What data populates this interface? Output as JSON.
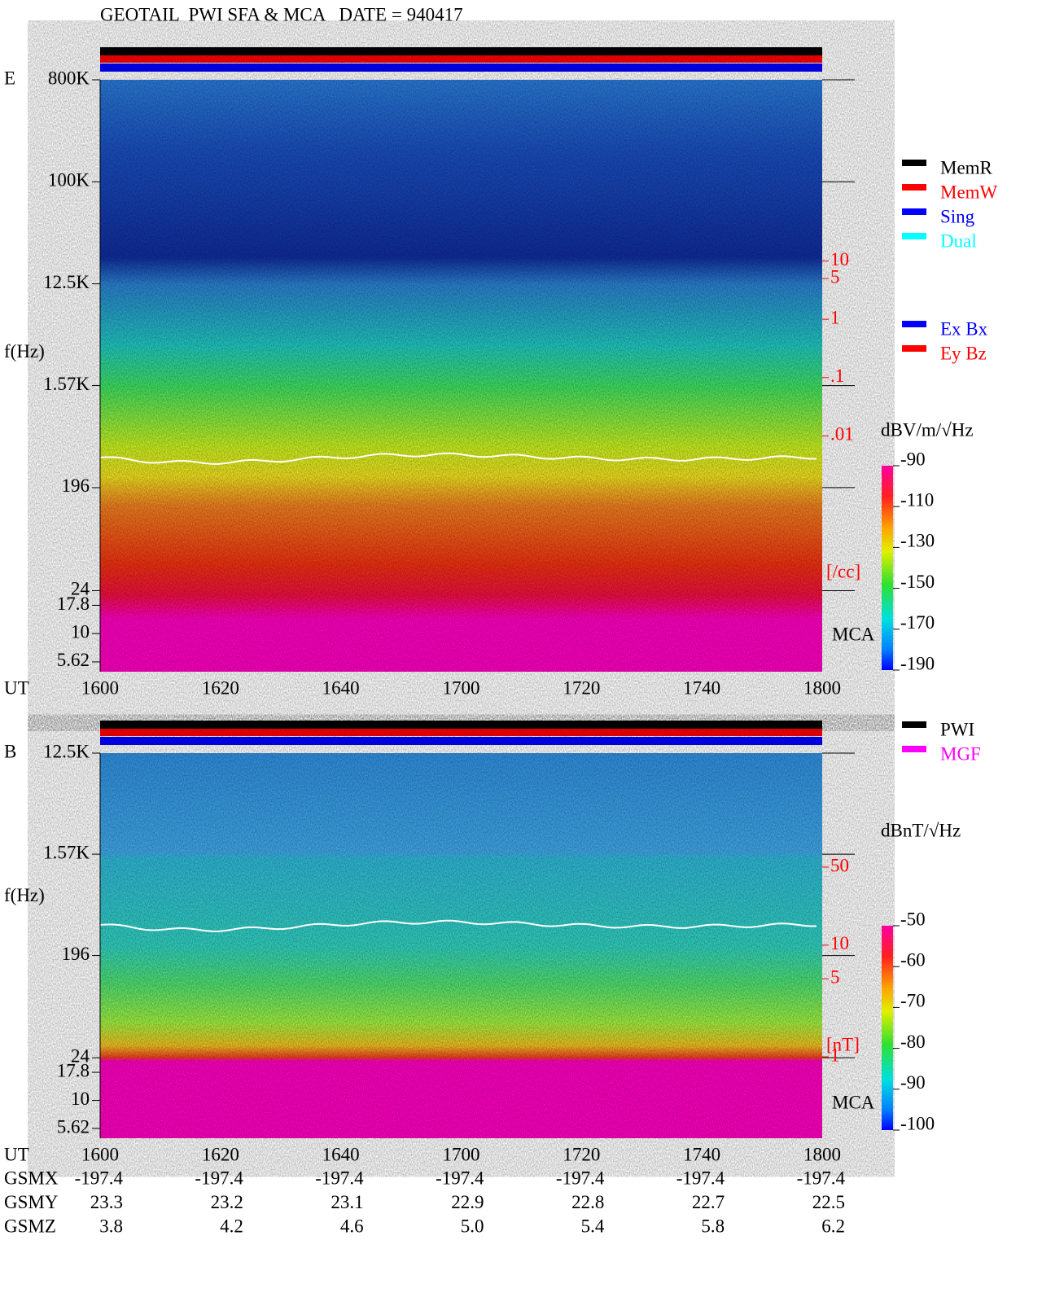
{
  "title": "GEOTAIL  PWI SFA & MCA   DATE = 940417",
  "chart_data": [
    {
      "type": "spectrogram",
      "panel_label": "E",
      "y_label": "f(Hz)",
      "x_label": "UT",
      "annotation": "MCA",
      "log_y": true,
      "ylim": [
        4.6,
        800000
      ],
      "yticks": [
        {
          "value": 800000,
          "label": "800K"
        },
        {
          "value": 100000,
          "label": "100K"
        },
        {
          "value": 12500,
          "label": "12.5K"
        },
        {
          "value": 1570,
          "label": "1.57K"
        },
        196,
        24,
        17.8,
        10,
        5.62
      ],
      "xticks": [
        "1600",
        "1620",
        "1640",
        "1700",
        "1720",
        "1740",
        "1800"
      ],
      "y2lim": [
        0.001,
        20
      ],
      "y2_color": "#ff0000",
      "y2_label": "[/cc]",
      "y2ticks": [
        10,
        5,
        1,
        {
          "value": 0.1,
          "label": ".1"
        },
        {
          "value": 0.01,
          "label": ".01"
        }
      ],
      "colorbar": {
        "label": "dBV/m/√Hz",
        "zlim": [
          -190,
          -90
        ],
        "zticks": [
          -90,
          -110,
          -130,
          -150,
          -170,
          -190
        ]
      },
      "legend": [
        {
          "name": "MemR",
          "color": "#000000"
        },
        {
          "name": "MemW",
          "color": "#ff0000"
        },
        {
          "name": "Sing",
          "color": "#0000ff"
        },
        {
          "name": "Dual",
          "color": "#00ffff"
        }
      ],
      "legend2": [
        {
          "name": "Ex Bx",
          "color": "#0000ff"
        },
        {
          "name": "Ey Bz",
          "color": "#ff0000"
        }
      ]
    },
    {
      "type": "spectrogram",
      "panel_label": "B",
      "y_label": "f(Hz)",
      "x_label": "UT",
      "annotation": "MCA",
      "log_y": true,
      "ylim": [
        4.6,
        12500
      ],
      "yticks": [
        {
          "value": 12500,
          "label": "12.5K"
        },
        {
          "value": 1570,
          "label": "1.57K"
        },
        196,
        24,
        17.8,
        10,
        5.62
      ],
      "xticks": [
        "1600",
        "1620",
        "1640",
        "1700",
        "1720",
        "1740",
        "1800"
      ],
      "y2lim": [
        1,
        50
      ],
      "y2_color": "#ff0000",
      "y2_label": "[nT]",
      "y2ticks": [
        50,
        10,
        5,
        1
      ],
      "colorbar": {
        "label": "dBnT/√Hz",
        "zlim": [
          -100,
          -50
        ],
        "zticks": [
          -50,
          -60,
          -70,
          -80,
          -90,
          -100
        ]
      },
      "legend": [
        {
          "name": "PWI",
          "color": "#000000"
        },
        {
          "name": "MGF",
          "color": "#ff00ff"
        }
      ]
    }
  ],
  "orbit": [
    {
      "name": "GSMX",
      "values": [
        "-197.4",
        "-197.4",
        "-197.4",
        "-197.4",
        "-197.4",
        "-197.4",
        "-197.4"
      ]
    },
    {
      "name": "GSMY",
      "values": [
        "23.3",
        "23.2",
        "23.1",
        "22.9",
        "22.8",
        "22.7",
        "22.5"
      ]
    },
    {
      "name": "GSMZ",
      "values": [
        "3.8",
        "4.2",
        "4.6",
        "5.0",
        "5.4",
        "5.8",
        "6.2"
      ]
    }
  ]
}
